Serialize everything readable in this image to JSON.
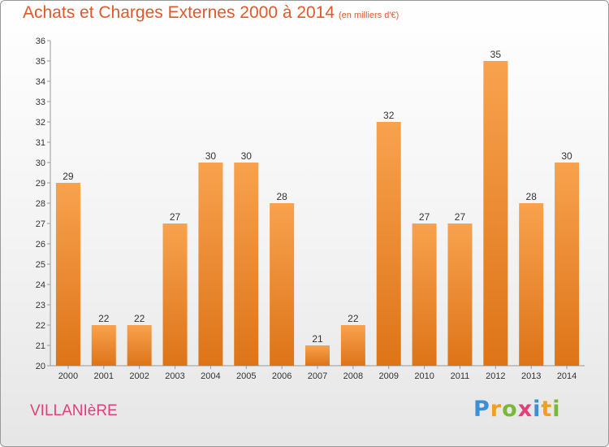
{
  "header": {
    "title": "Achats et Charges Externes 2000 à 2014",
    "subtitle": "(en milliers d'€)"
  },
  "footer": {
    "town": "VILLANIèRE",
    "logo_letters": [
      "P",
      "r",
      "o",
      "x",
      "i",
      "t",
      "i"
    ],
    "logo_colors": [
      "#3a8fd6",
      "#f0a020",
      "#7ab83a",
      "#e0407a",
      "#3a8fd6",
      "#f0a020",
      "#7ab83a"
    ]
  },
  "colors": {
    "bar_top": "#f8a24e",
    "bar_bottom": "#dd7418",
    "text": "#e0582e"
  },
  "chart_data": {
    "type": "bar",
    "title": "Achats et Charges Externes 2000 à 2014",
    "subtitle": "(en milliers d'€)",
    "categories": [
      "2000",
      "2001",
      "2002",
      "2003",
      "2004",
      "2005",
      "2006",
      "2007",
      "2008",
      "2009",
      "2010",
      "2011",
      "2012",
      "2013",
      "2014"
    ],
    "values": [
      29,
      22,
      22,
      27,
      30,
      30,
      28,
      21,
      22,
      32,
      27,
      27,
      35,
      28,
      30
    ],
    "ylim": [
      20,
      36
    ],
    "yticks": [
      20,
      21,
      22,
      23,
      24,
      25,
      26,
      27,
      28,
      29,
      30,
      31,
      32,
      33,
      34,
      35,
      36
    ],
    "grid": false,
    "data_labels": true
  }
}
